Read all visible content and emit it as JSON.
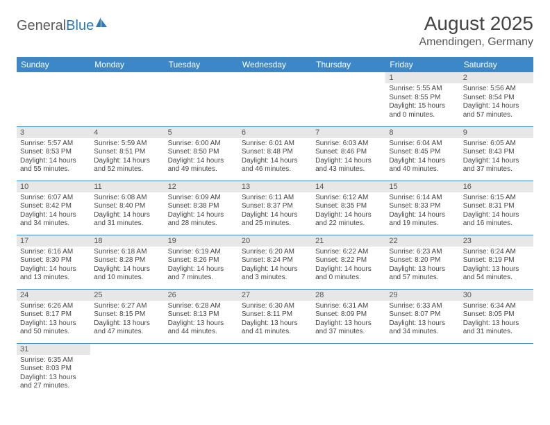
{
  "brand": {
    "part1": "General",
    "part2": "Blue"
  },
  "title": "August 2025",
  "location": "Amendingen, Germany",
  "colors": {
    "header_bg": "#3b87c8",
    "header_text": "#ffffff",
    "daynum_bg": "#e7e7e7",
    "row_border": "#3b87c8",
    "brand_accent": "#2f78b7",
    "text": "#444444"
  },
  "weekdays": [
    "Sunday",
    "Monday",
    "Tuesday",
    "Wednesday",
    "Thursday",
    "Friday",
    "Saturday"
  ],
  "weeks": [
    [
      null,
      null,
      null,
      null,
      null,
      {
        "n": "1",
        "sunrise": "5:55 AM",
        "sunset": "8:55 PM",
        "daylight": "15 hours and 0 minutes."
      },
      {
        "n": "2",
        "sunrise": "5:56 AM",
        "sunset": "8:54 PM",
        "daylight": "14 hours and 57 minutes."
      }
    ],
    [
      {
        "n": "3",
        "sunrise": "5:57 AM",
        "sunset": "8:53 PM",
        "daylight": "14 hours and 55 minutes."
      },
      {
        "n": "4",
        "sunrise": "5:59 AM",
        "sunset": "8:51 PM",
        "daylight": "14 hours and 52 minutes."
      },
      {
        "n": "5",
        "sunrise": "6:00 AM",
        "sunset": "8:50 PM",
        "daylight": "14 hours and 49 minutes."
      },
      {
        "n": "6",
        "sunrise": "6:01 AM",
        "sunset": "8:48 PM",
        "daylight": "14 hours and 46 minutes."
      },
      {
        "n": "7",
        "sunrise": "6:03 AM",
        "sunset": "8:46 PM",
        "daylight": "14 hours and 43 minutes."
      },
      {
        "n": "8",
        "sunrise": "6:04 AM",
        "sunset": "8:45 PM",
        "daylight": "14 hours and 40 minutes."
      },
      {
        "n": "9",
        "sunrise": "6:05 AM",
        "sunset": "8:43 PM",
        "daylight": "14 hours and 37 minutes."
      }
    ],
    [
      {
        "n": "10",
        "sunrise": "6:07 AM",
        "sunset": "8:42 PM",
        "daylight": "14 hours and 34 minutes."
      },
      {
        "n": "11",
        "sunrise": "6:08 AM",
        "sunset": "8:40 PM",
        "daylight": "14 hours and 31 minutes."
      },
      {
        "n": "12",
        "sunrise": "6:09 AM",
        "sunset": "8:38 PM",
        "daylight": "14 hours and 28 minutes."
      },
      {
        "n": "13",
        "sunrise": "6:11 AM",
        "sunset": "8:37 PM",
        "daylight": "14 hours and 25 minutes."
      },
      {
        "n": "14",
        "sunrise": "6:12 AM",
        "sunset": "8:35 PM",
        "daylight": "14 hours and 22 minutes."
      },
      {
        "n": "15",
        "sunrise": "6:14 AM",
        "sunset": "8:33 PM",
        "daylight": "14 hours and 19 minutes."
      },
      {
        "n": "16",
        "sunrise": "6:15 AM",
        "sunset": "8:31 PM",
        "daylight": "14 hours and 16 minutes."
      }
    ],
    [
      {
        "n": "17",
        "sunrise": "6:16 AM",
        "sunset": "8:30 PM",
        "daylight": "14 hours and 13 minutes."
      },
      {
        "n": "18",
        "sunrise": "6:18 AM",
        "sunset": "8:28 PM",
        "daylight": "14 hours and 10 minutes."
      },
      {
        "n": "19",
        "sunrise": "6:19 AM",
        "sunset": "8:26 PM",
        "daylight": "14 hours and 7 minutes."
      },
      {
        "n": "20",
        "sunrise": "6:20 AM",
        "sunset": "8:24 PM",
        "daylight": "14 hours and 3 minutes."
      },
      {
        "n": "21",
        "sunrise": "6:22 AM",
        "sunset": "8:22 PM",
        "daylight": "14 hours and 0 minutes."
      },
      {
        "n": "22",
        "sunrise": "6:23 AM",
        "sunset": "8:20 PM",
        "daylight": "13 hours and 57 minutes."
      },
      {
        "n": "23",
        "sunrise": "6:24 AM",
        "sunset": "8:19 PM",
        "daylight": "13 hours and 54 minutes."
      }
    ],
    [
      {
        "n": "24",
        "sunrise": "6:26 AM",
        "sunset": "8:17 PM",
        "daylight": "13 hours and 50 minutes."
      },
      {
        "n": "25",
        "sunrise": "6:27 AM",
        "sunset": "8:15 PM",
        "daylight": "13 hours and 47 minutes."
      },
      {
        "n": "26",
        "sunrise": "6:28 AM",
        "sunset": "8:13 PM",
        "daylight": "13 hours and 44 minutes."
      },
      {
        "n": "27",
        "sunrise": "6:30 AM",
        "sunset": "8:11 PM",
        "daylight": "13 hours and 41 minutes."
      },
      {
        "n": "28",
        "sunrise": "6:31 AM",
        "sunset": "8:09 PM",
        "daylight": "13 hours and 37 minutes."
      },
      {
        "n": "29",
        "sunrise": "6:33 AM",
        "sunset": "8:07 PM",
        "daylight": "13 hours and 34 minutes."
      },
      {
        "n": "30",
        "sunrise": "6:34 AM",
        "sunset": "8:05 PM",
        "daylight": "13 hours and 31 minutes."
      }
    ],
    [
      {
        "n": "31",
        "sunrise": "6:35 AM",
        "sunset": "8:03 PM",
        "daylight": "13 hours and 27 minutes."
      },
      null,
      null,
      null,
      null,
      null,
      null
    ]
  ],
  "labels": {
    "sunrise": "Sunrise: ",
    "sunset": "Sunset: ",
    "daylight": "Daylight: "
  }
}
